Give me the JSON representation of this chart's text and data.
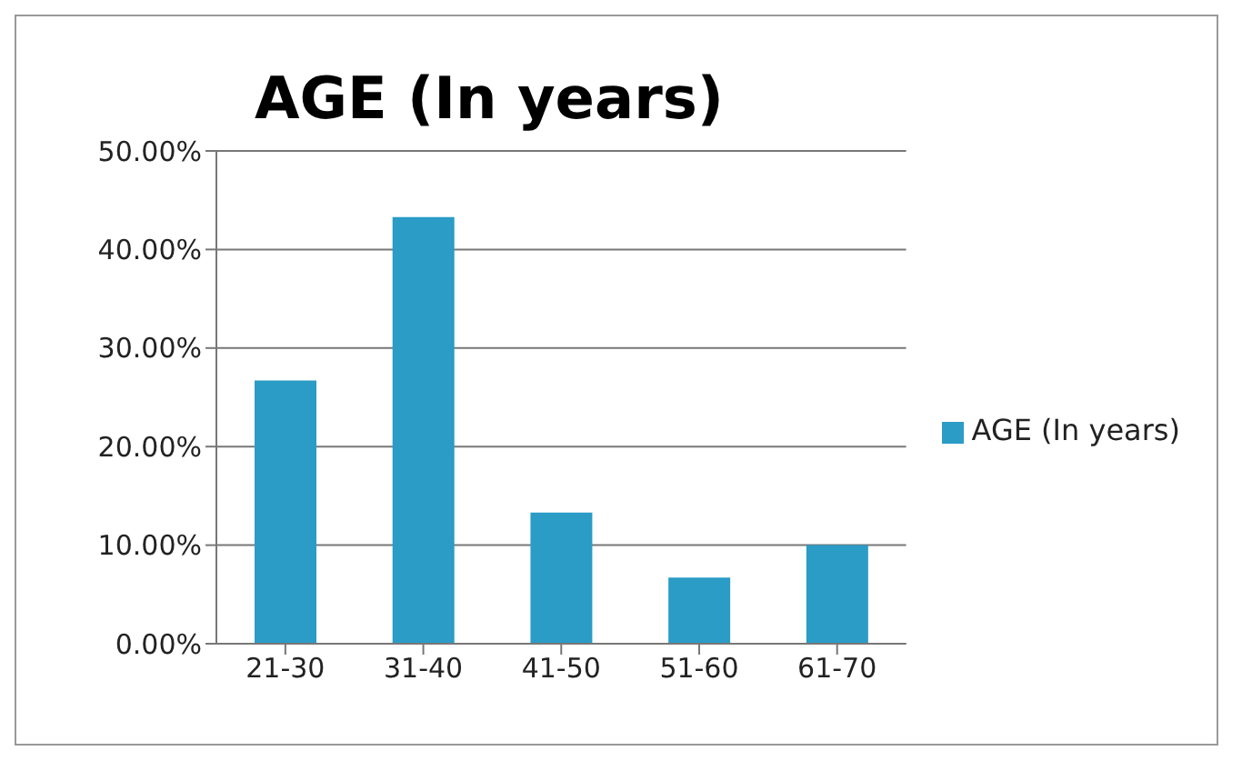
{
  "chart_data": {
    "type": "bar",
    "title": "AGE (In years)",
    "categories": [
      "21-30",
      "31-40",
      "41-50",
      "51-60",
      "61-70"
    ],
    "series": [
      {
        "name": "AGE (In years)",
        "color": "#2a9cc6",
        "values": [
          26.7,
          43.3,
          13.3,
          6.7,
          10
        ]
      }
    ],
    "ylim": [
      0,
      50
    ],
    "yticks": [
      {
        "value": 0,
        "label": "0.00%"
      },
      {
        "value": 10,
        "label": "10.00%"
      },
      {
        "value": 20,
        "label": "20.00%"
      },
      {
        "value": 30,
        "label": "30.00%"
      },
      {
        "value": 40,
        "label": "40.00%"
      },
      {
        "value": 50,
        "label": "50.00%"
      }
    ],
    "grid": "y",
    "legend": "right"
  }
}
